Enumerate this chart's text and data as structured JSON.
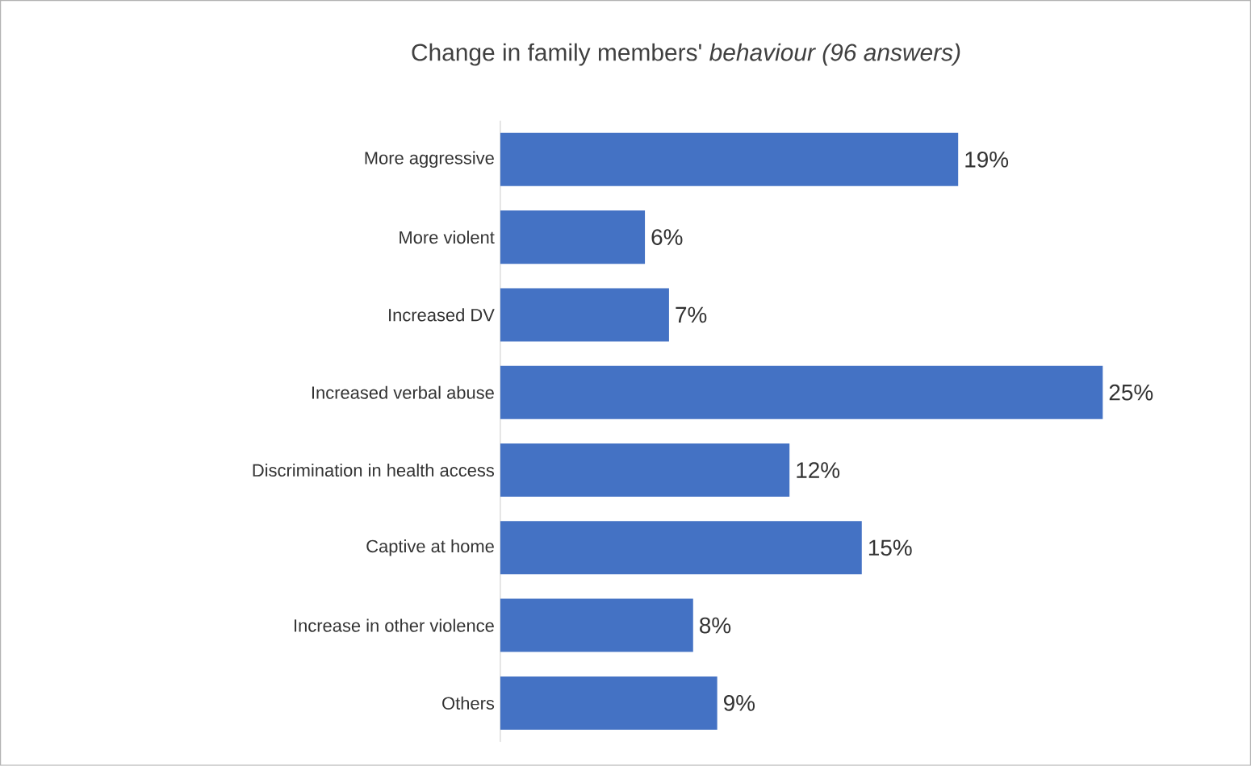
{
  "chart_data": {
    "type": "bar",
    "orientation": "horizontal",
    "title": "Change in family members' *behaviour (96 answers)*",
    "categories": [
      "More aggressive",
      "More violent",
      "Increased DV",
      "Increased verbal abuse",
      "Discrimination in  health access",
      "Captive at home",
      "Increase in other violence",
      "Others"
    ],
    "values": [
      19,
      6,
      7,
      25,
      12,
      15,
      8,
      9
    ],
    "value_labels": [
      "19%",
      "6%",
      "7%",
      "25%",
      "12%",
      "15%",
      "8%",
      "9%"
    ],
    "color": "#4472c4"
  }
}
